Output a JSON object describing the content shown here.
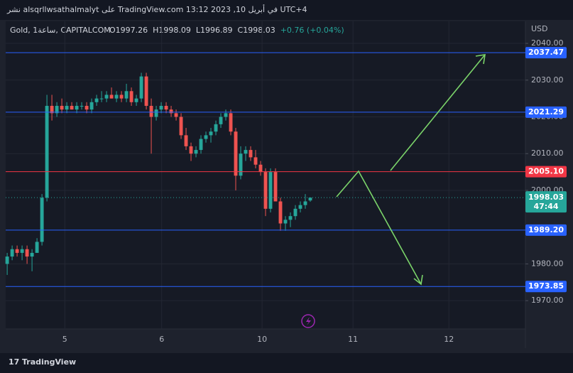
{
  "header": {
    "publisher": "نشر alsqrllwsathalmalyt على TradingView.com في أبريل 10, 2023 13:12 UTC+4",
    "brand": "TradingView"
  },
  "chart_data": {
    "type": "candlestick",
    "title": "Gold, 1ساعة, CAPITALCOM",
    "ohlc_text": [
      "O1997.26",
      "H1998.09",
      "L1996.89",
      "C1998.03",
      "+0.76 (+0.04%)"
    ],
    "currency": "USD",
    "x": [
      0,
      1,
      2,
      3,
      4,
      5,
      6,
      7,
      8,
      9,
      10,
      11,
      12,
      13,
      14,
      15,
      16,
      17,
      18,
      19,
      20,
      21,
      22,
      23,
      24,
      25,
      26,
      27,
      28,
      29,
      30,
      31,
      32,
      33,
      34,
      35,
      36,
      37,
      38,
      39,
      40,
      41,
      42,
      43,
      44,
      45,
      46,
      47,
      48,
      49,
      50,
      51,
      52,
      53,
      54,
      55,
      56,
      57,
      58,
      59,
      60,
      61
    ],
    "open": [
      1980,
      1982,
      1984,
      1983,
      1984,
      1982,
      1983,
      1986,
      1998,
      2023,
      2021,
      2023,
      2022,
      2023,
      2022,
      2023,
      2023,
      2022,
      2024,
      2025,
      2025,
      2026,
      2025,
      2026,
      2025,
      2027,
      2024,
      2025,
      2031,
      2023,
      2020,
      2022,
      2023,
      2022,
      2021,
      2020,
      2015,
      2012,
      2010,
      2011,
      2014,
      2015,
      2016,
      2018,
      2020,
      2021,
      2016,
      2004,
      2010,
      2011,
      2009,
      2007,
      2005,
      1995,
      2005,
      1997,
      1991,
      1992,
      1993,
      1995,
      1996,
      1997.26
    ],
    "high": [
      1983,
      1985,
      1985,
      1985,
      1985,
      1984,
      1987,
      1999,
      2026,
      2026,
      2024,
      2025,
      2024,
      2024,
      2024,
      2024,
      2024,
      2025,
      2026,
      2027,
      2027,
      2028,
      2027,
      2027,
      2029,
      2028,
      2026,
      2032,
      2032,
      2025,
      2023,
      2024,
      2024,
      2023,
      2022,
      2021,
      2017,
      2013,
      2012,
      2015,
      2016,
      2017,
      2019,
      2021,
      2022,
      2022,
      2017,
      2012,
      2012,
      2012,
      2011,
      2008,
      2006,
      2006,
      2006,
      1998,
      1993,
      1994,
      1996,
      1997,
      1999,
      1998.09
    ],
    "low": [
      1977,
      1981,
      1982,
      1981,
      1980,
      1978,
      1983,
      1985,
      1997,
      2019,
      2020,
      2021,
      2021,
      2022,
      2021,
      2022,
      2021,
      2021,
      2023,
      2024,
      2024,
      2025,
      2024,
      2024,
      2024,
      2023,
      2023,
      2024,
      2022,
      2010,
      2019,
      2021,
      2021,
      2020,
      2019,
      2014,
      2011,
      2008,
      2009,
      2010,
      2013,
      2013,
      2015,
      2017,
      2019,
      2015,
      2000,
      2003,
      2008,
      2008,
      2006,
      2004,
      1993,
      1994,
      1997,
      1989,
      1989,
      1990,
      1992,
      1994,
      1995,
      1996.89
    ],
    "close": [
      1982,
      1984,
      1983,
      1984,
      1982,
      1983,
      1986,
      1998,
      2023,
      2021,
      2023,
      2022,
      2023,
      2022,
      2023,
      2023,
      2022,
      2024,
      2025,
      2025,
      2026,
      2025,
      2026,
      2025,
      2027,
      2024,
      2025,
      2031,
      2023,
      2020,
      2022,
      2023,
      2022,
      2021,
      2020,
      2015,
      2012,
      2010,
      2011,
      2014,
      2015,
      2016,
      2018,
      2020,
      2021,
      2016,
      2004,
      2010,
      2011,
      2009,
      2007,
      2005,
      1995,
      2005,
      1997,
      1991,
      1992,
      1993,
      1995,
      1996,
      1997,
      1998.03
    ],
    "up_color": "#26a69a",
    "down_color": "#ef5350",
    "xlim": [
      -0.3,
      104.3
    ],
    "xticks": [
      {
        "value": 11.6,
        "label": "5"
      },
      {
        "value": 31.1,
        "label": "6"
      },
      {
        "value": 51.3,
        "label": "10"
      },
      {
        "value": 69.6,
        "label": "11"
      },
      {
        "value": 88.9,
        "label": "12"
      }
    ],
    "ylim": [
      1962.3,
      2046
    ],
    "yticks": [
      {
        "value": 1970,
        "label": "1970.00"
      },
      {
        "value": 1980,
        "label": "1980.00"
      },
      {
        "value": 2000,
        "label": "2000.00"
      },
      {
        "value": 2010,
        "label": "2010.00"
      },
      {
        "value": 2020,
        "label": "2020.00"
      },
      {
        "value": 2030,
        "label": "2030.00"
      },
      {
        "value": 2040,
        "label": "2040.00"
      }
    ],
    "grid": true,
    "levels": [
      {
        "value": 2037.47,
        "label": "2037.47",
        "color": "#2962ff"
      },
      {
        "value": 2021.29,
        "label": "2021.29",
        "color": "#2962ff"
      },
      {
        "value": 2005.1,
        "label": "2005.10",
        "color": "#f23645"
      },
      {
        "value": 1989.2,
        "label": "1989.20",
        "color": "#2962ff"
      },
      {
        "value": 1973.85,
        "label": "1973.85",
        "color": "#2962ff"
      }
    ],
    "last_price": {
      "value": 1998.03,
      "label": "1998.03",
      "countdown": "47:44",
      "color": "#26a69a"
    }
  }
}
